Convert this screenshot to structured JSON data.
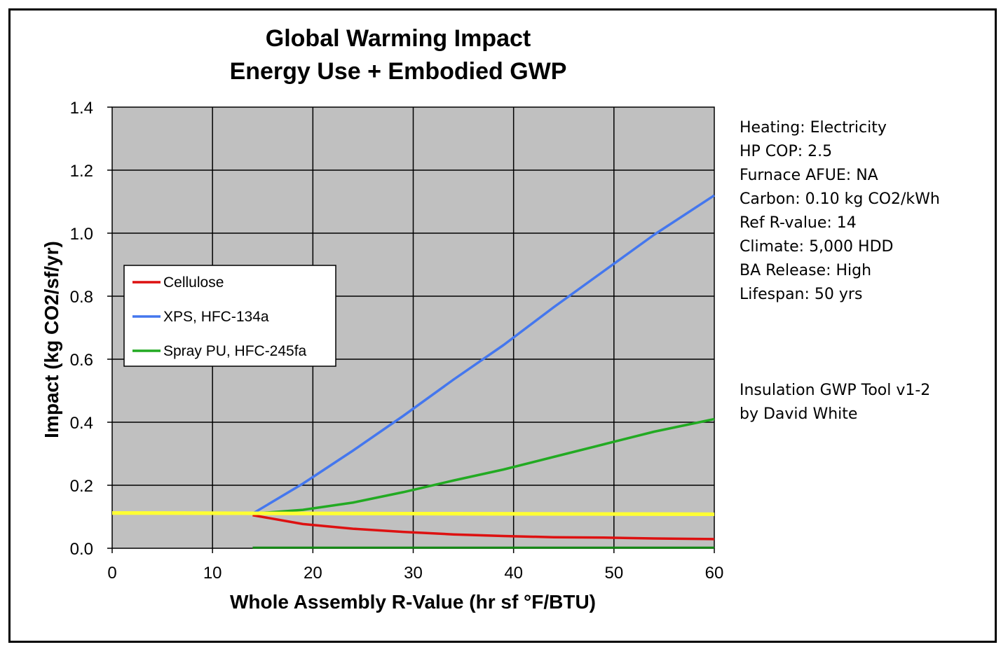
{
  "chart_data": {
    "type": "line",
    "title": [
      "Global Warming Impact",
      "Energy Use + Embodied GWP"
    ],
    "xlabel": "Whole Assembly R-Value (hr sf °F/BTU)",
    "ylabel": "Impact  (kg CO2/sf/yr)",
    "xlim": [
      0,
      60
    ],
    "ylim": [
      0,
      1.4
    ],
    "xticks": [
      0,
      10,
      20,
      30,
      40,
      50,
      60
    ],
    "xtick_labels": [
      "0",
      "10",
      "20",
      "30",
      "40",
      "50",
      "60"
    ],
    "yticks": [
      0,
      0.2,
      0.4,
      0.6,
      0.8,
      1.0,
      1.2,
      1.4
    ],
    "ytick_labels": [
      "0.0",
      "0.2",
      "0.4",
      "0.6",
      "0.8",
      "1.0",
      "1.2",
      "1.4"
    ],
    "grid": true,
    "plot_background": "#c0c0c0",
    "legend_position": "left-center",
    "series": [
      {
        "name": "Cellulose",
        "color": "#dd1111",
        "x": [
          14,
          19,
          24,
          29,
          34,
          39,
          44,
          49,
          54,
          60
        ],
        "y": [
          0.105,
          0.077,
          0.062,
          0.052,
          0.044,
          0.039,
          0.035,
          0.034,
          0.031,
          0.029
        ]
      },
      {
        "name": "XPS, HFC-134a",
        "color": "#4477ee",
        "x": [
          14,
          19,
          24,
          29,
          34,
          39,
          44,
          49,
          54,
          60
        ],
        "y": [
          0.11,
          0.205,
          0.31,
          0.42,
          0.535,
          0.645,
          0.765,
          0.88,
          0.995,
          1.12
        ]
      },
      {
        "name": "Spray PU, HFC-245fa",
        "color": "#22aa22",
        "x": [
          14,
          19,
          24,
          29,
          34,
          39,
          44,
          49,
          54,
          60
        ],
        "y": [
          0.11,
          0.122,
          0.145,
          0.178,
          0.215,
          0.25,
          0.29,
          0.33,
          0.37,
          0.41
        ]
      }
    ],
    "extra_lines": [
      {
        "color": "#ffff33",
        "x": [
          0,
          60
        ],
        "y": [
          0.112,
          0.108
        ]
      },
      {
        "color": "#118811",
        "x": [
          14,
          60
        ],
        "y": [
          0.002,
          0.002
        ]
      }
    ]
  },
  "notes": [
    "Heating:  Electricity",
    "HP COP:  2.5",
    "Furnace AFUE:  NA",
    "Carbon:  0.10 kg CO2/kWh",
    "Ref R-value:  14",
    "Climate:  5,000 HDD",
    "BA Release:  High",
    "Lifespan:  50 yrs"
  ],
  "credits": [
    "Insulation GWP Tool v1-2",
    "by David White"
  ]
}
